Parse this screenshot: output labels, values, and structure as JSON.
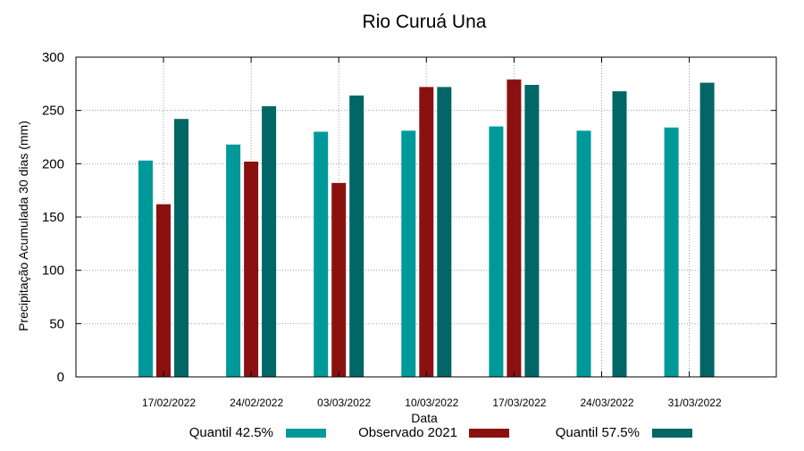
{
  "chart_data": {
    "type": "bar",
    "title": "Rio Curuá Una",
    "xlabel": "Data",
    "ylabel": "Precipitação Acumulada 30 dias (mm)",
    "ylim": [
      0,
      300
    ],
    "yticks": [
      0,
      50,
      100,
      150,
      200,
      250,
      300
    ],
    "grid": true,
    "legend_position": "bottom",
    "categories": [
      "17/02/2022",
      "24/02/2022",
      "03/03/2022",
      "10/03/2022",
      "17/03/2022",
      "24/03/2022",
      "31/03/2022"
    ],
    "series": [
      {
        "name": "Quantil 42.5%",
        "color": "#009999",
        "values": [
          203,
          218,
          230,
          231,
          235,
          231,
          234
        ]
      },
      {
        "name": "Observado 2021",
        "color": "#8b1111",
        "values": [
          162,
          202,
          182,
          272,
          279,
          null,
          null
        ]
      },
      {
        "name": "Quantil 57.5%",
        "color": "#006666",
        "values": [
          242,
          254,
          264,
          272,
          274,
          268,
          276
        ]
      }
    ]
  }
}
